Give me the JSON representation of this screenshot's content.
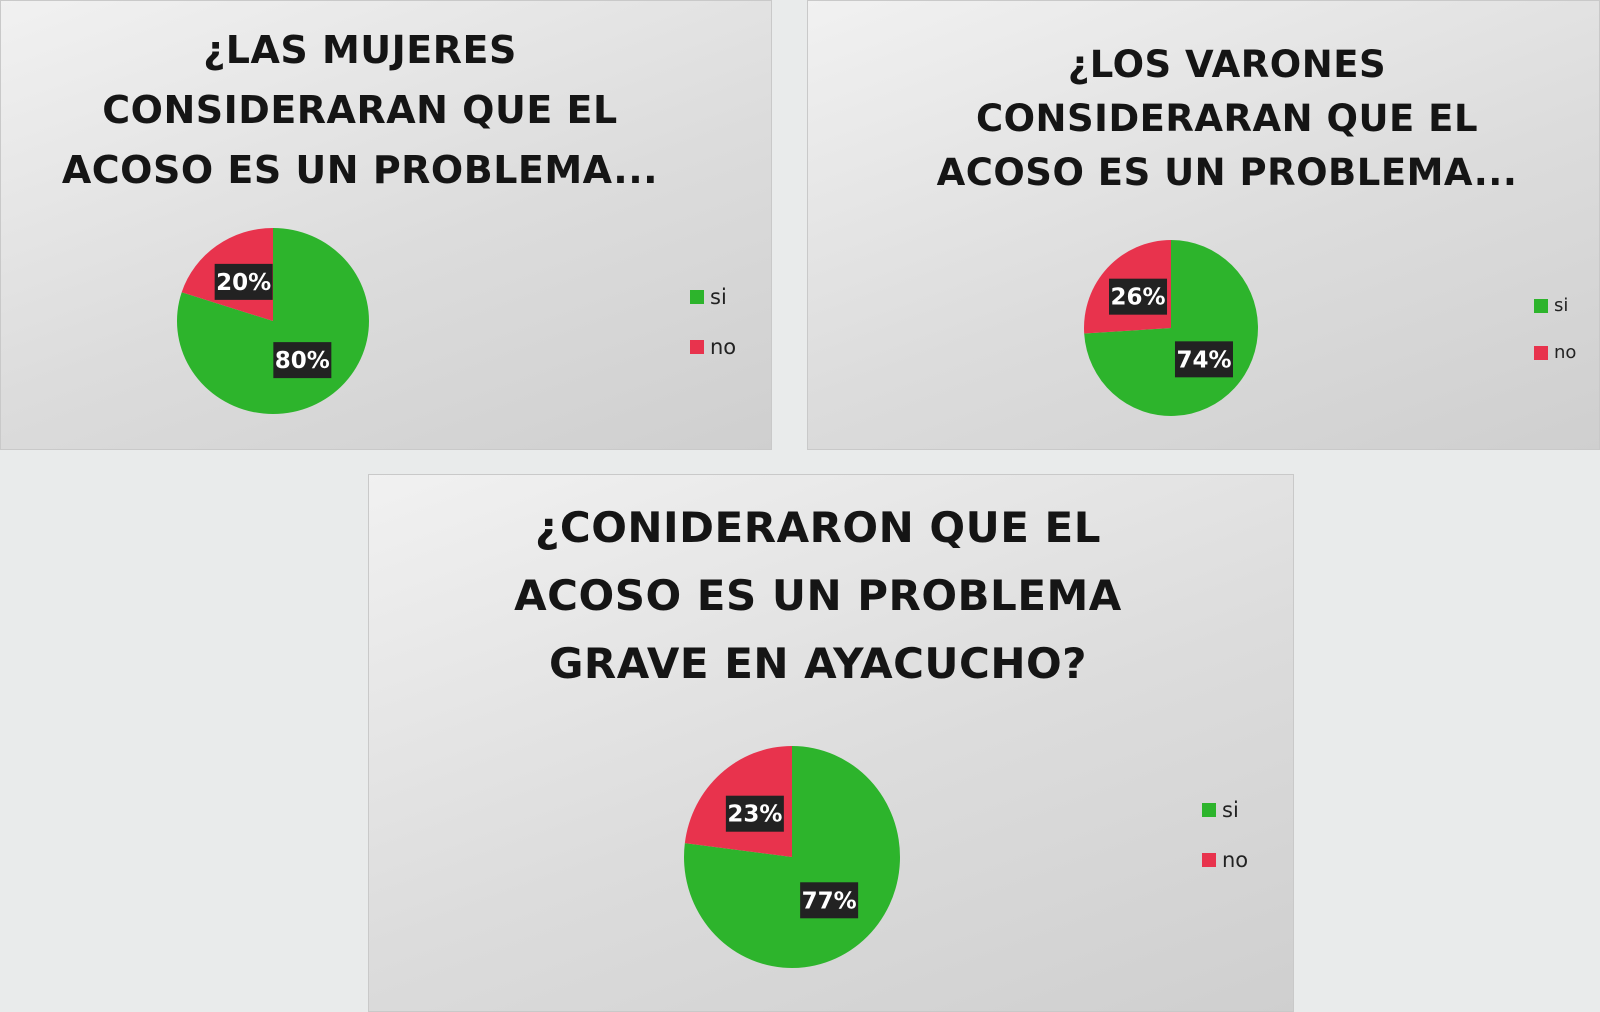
{
  "colors": {
    "si": "#2db42c",
    "no": "#e8334d",
    "label_bg": "#222222"
  },
  "chart_data": [
    {
      "type": "pie",
      "title_lines": [
        "¿LAS MUJERES",
        "CONSIDERARAN QUE EL",
        "ACOSO ES UN PROBLEMA..."
      ],
      "categories": [
        "si",
        "no"
      ],
      "values": [
        80,
        20
      ],
      "data_labels": [
        "80%",
        "20%"
      ],
      "legend": {
        "position": "right",
        "entries": [
          "si",
          "no"
        ]
      }
    },
    {
      "type": "pie",
      "title_lines": [
        "¿LOS VARONES",
        "CONSIDERARAN QUE EL",
        "ACOSO ES UN PROBLEMA..."
      ],
      "categories": [
        "si",
        "no"
      ],
      "values": [
        74,
        26
      ],
      "data_labels": [
        "74%",
        "26%"
      ],
      "legend": {
        "position": "right",
        "entries": [
          "si",
          "no"
        ]
      }
    },
    {
      "type": "pie",
      "title_lines": [
        "¿CONIDERARON QUE EL",
        "ACOSO ES UN PROBLEMA",
        "GRAVE EN AYACUCHO?"
      ],
      "categories": [
        "si",
        "no"
      ],
      "values": [
        77,
        23
      ],
      "data_labels": [
        "77%",
        "23%"
      ],
      "legend": {
        "position": "right",
        "entries": [
          "si",
          "no"
        ]
      }
    }
  ]
}
